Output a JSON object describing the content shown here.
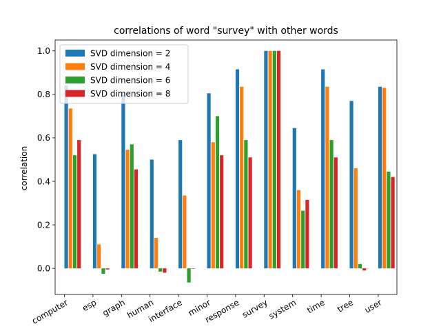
{
  "chart_data": {
    "type": "bar",
    "title": "correlations of word \"survey\" with other words",
    "xlabel": "",
    "ylabel": "correlation",
    "ylim": [
      -0.12,
      1.05
    ],
    "yticks": [
      "0.0",
      "0.2",
      "0.4",
      "0.6",
      "0.8",
      "1.0"
    ],
    "grid": false,
    "legend_position": "top-left",
    "categories": [
      "computer",
      "esp",
      "graph",
      "human",
      "interface",
      "minor",
      "response",
      "survey",
      "system",
      "time",
      "tree",
      "user"
    ],
    "series": [
      {
        "name": "SVD dimension = 2",
        "color": "#1f77b4",
        "values": [
          0.84,
          0.525,
          0.8,
          0.5,
          0.59,
          0.805,
          0.915,
          1.0,
          0.645,
          0.915,
          0.77,
          0.835
        ]
      },
      {
        "name": "SVD dimension = 4",
        "color": "#ff7f0e",
        "values": [
          0.735,
          0.11,
          0.545,
          0.14,
          0.335,
          0.58,
          0.835,
          1.0,
          0.36,
          0.835,
          0.46,
          0.83
        ]
      },
      {
        "name": "SVD dimension = 6",
        "color": "#2ca02c",
        "values": [
          0.52,
          -0.025,
          0.57,
          -0.015,
          -0.065,
          0.7,
          0.59,
          1.0,
          0.265,
          0.59,
          0.02,
          0.445
        ]
      },
      {
        "name": "SVD dimension = 8",
        "color": "#d62728",
        "values": [
          0.59,
          -0.005,
          0.455,
          -0.02,
          -0.002,
          0.52,
          0.51,
          1.0,
          0.315,
          0.51,
          -0.01,
          0.42
        ]
      }
    ]
  }
}
